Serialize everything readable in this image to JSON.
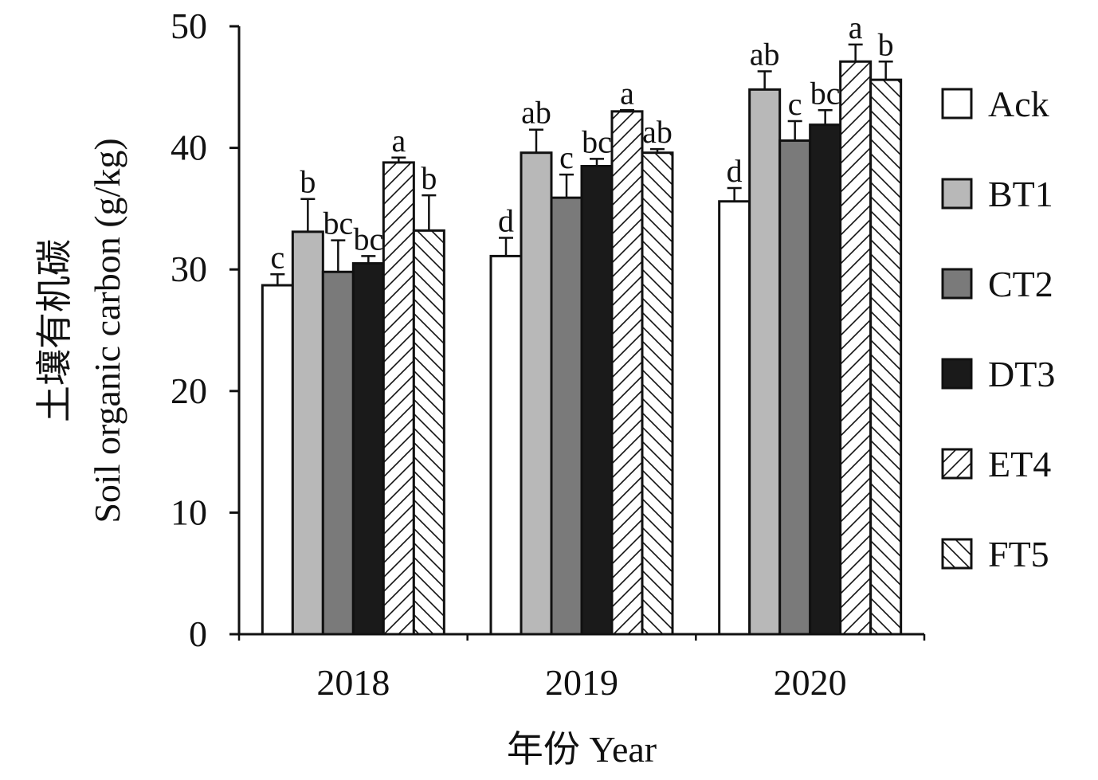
{
  "chart_data": {
    "type": "bar",
    "title": "",
    "xlabel": "年份 Year",
    "ylabel_cn": "土壤有机碳",
    "ylabel_en": "Soil organic carbon (g/kg)",
    "ylim": [
      0,
      50
    ],
    "yticks": [
      0,
      10,
      20,
      30,
      40,
      50
    ],
    "categories": [
      "2018",
      "2019",
      "2020"
    ],
    "legend_position": "right",
    "grid": false,
    "series": [
      {
        "name": "Ack",
        "fill": "white",
        "values": [
          28.7,
          31.1,
          35.6
        ],
        "errors": [
          0.9,
          1.5,
          1.1
        ],
        "labels": [
          "c",
          "d",
          "d"
        ]
      },
      {
        "name": "BT1",
        "fill": "#b8b8b8",
        "values": [
          33.1,
          39.6,
          44.8
        ],
        "errors": [
          2.7,
          1.9,
          1.5
        ],
        "labels": [
          "b",
          "ab",
          "ab"
        ]
      },
      {
        "name": "CT2",
        "fill": "#7a7a7a",
        "values": [
          29.8,
          35.9,
          40.6
        ],
        "errors": [
          2.6,
          1.9,
          1.6
        ],
        "labels": [
          "bc",
          "c",
          "c"
        ]
      },
      {
        "name": "DT3",
        "fill": "#1a1a1a",
        "values": [
          30.5,
          38.5,
          41.9
        ],
        "errors": [
          0.6,
          0.6,
          1.2
        ],
        "labels": [
          "bc",
          "bc",
          "bc"
        ]
      },
      {
        "name": "ET4",
        "fill": "hatch-right",
        "values": [
          38.8,
          43.0,
          47.1
        ],
        "errors": [
          0.4,
          0.1,
          1.4
        ],
        "labels": [
          "a",
          "a",
          "a"
        ]
      },
      {
        "name": "FT5",
        "fill": "hatch-left",
        "values": [
          33.2,
          39.6,
          45.6
        ],
        "errors": [
          2.9,
          0.3,
          1.5
        ],
        "labels": [
          "b",
          "ab",
          "b"
        ]
      }
    ]
  }
}
